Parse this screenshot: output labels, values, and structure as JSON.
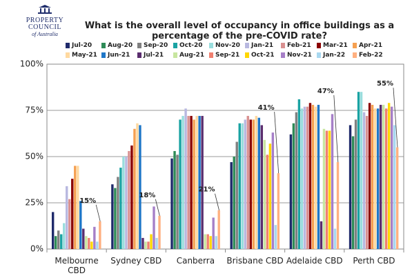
{
  "logo": {
    "line1": "PROPERTY",
    "line2": "COUNCIL",
    "line3": "of Australia"
  },
  "chart_data": {
    "type": "bar",
    "title": "What is the overall level of occupancy in office buildings as a percentage of the pre-COVID rate?",
    "categories": [
      "Melbourne CBD",
      "Sydney CBD",
      "Canberra",
      "Brisbane CBD",
      "Adelaide CBD",
      "Perth CBD"
    ],
    "ylim": [
      0,
      100
    ],
    "yticks": [
      {
        "value": 0,
        "label": "0%"
      },
      {
        "value": 25,
        "label": "25%"
      },
      {
        "value": 50,
        "label": "50%"
      },
      {
        "value": 75,
        "label": "75%"
      },
      {
        "value": 100,
        "label": "100%"
      }
    ],
    "grid": true,
    "series": [
      {
        "name": "Jul-20",
        "color": "#1f2a6b",
        "values": [
          20,
          35,
          49,
          47,
          62,
          67
        ]
      },
      {
        "name": "Aug-20",
        "color": "#2e8b57",
        "values": [
          7,
          33,
          53,
          50,
          68,
          61
        ]
      },
      {
        "name": "Sep-20",
        "color": "#808080",
        "values": [
          10,
          39,
          51,
          58,
          74,
          70
        ]
      },
      {
        "name": "Oct-20",
        "color": "#1aa3a3",
        "values": [
          8,
          44,
          70,
          68,
          81,
          85
        ]
      },
      {
        "name": "Nov-20",
        "color": "#99dddd",
        "values": [
          14,
          50,
          72,
          68,
          76,
          85
        ]
      },
      {
        "name": "Jan-21",
        "color": "#b8b8e0",
        "values": [
          34,
          50,
          76,
          70,
          77,
          74
        ]
      },
      {
        "name": "Feb-21",
        "color": "#d99090",
        "values": [
          27,
          53,
          72,
          72,
          77,
          72
        ]
      },
      {
        "name": "Mar-21",
        "color": "#8b0000",
        "values": [
          38,
          56,
          72,
          70,
          79,
          79
        ]
      },
      {
        "name": "Apr-21",
        "color": "#f5a050",
        "values": [
          45,
          65,
          70,
          70,
          78,
          78
        ]
      },
      {
        "name": "May-21",
        "color": "#ffd9a0",
        "values": [
          45,
          68,
          72,
          72,
          77,
          76
        ]
      },
      {
        "name": "Jun-21",
        "color": "#1f77c8",
        "values": [
          26,
          67,
          72,
          71,
          78,
          76
        ]
      },
      {
        "name": "Jul-21",
        "color": "#5a2d6e",
        "values": [
          11,
          6,
          72,
          67,
          15,
          78
        ]
      },
      {
        "name": "Aug-21",
        "color": "#c8e6a0",
        "values": [
          7,
          4,
          8,
          59,
          65,
          78
        ]
      },
      {
        "name": "Sep-21",
        "color": "#f08070",
        "values": [
          6,
          4,
          8,
          51,
          64,
          76
        ]
      },
      {
        "name": "Oct-21",
        "color": "#ffd700",
        "values": [
          4,
          8,
          7,
          57,
          64,
          79
        ]
      },
      {
        "name": "Nov-21",
        "color": "#a67fc8",
        "values": [
          12,
          23,
          17,
          63,
          73,
          77
        ]
      },
      {
        "name": "Jan-22",
        "color": "#a8d8f0",
        "values": [
          4,
          6,
          7,
          13,
          11,
          67
        ]
      },
      {
        "name": "Feb-22",
        "color": "#ffb080",
        "values": [
          15,
          18,
          21,
          41,
          47,
          55
        ],
        "value_labels": [
          "15%",
          "18%",
          "21%",
          "41%",
          "47%",
          "55%"
        ]
      }
    ]
  }
}
